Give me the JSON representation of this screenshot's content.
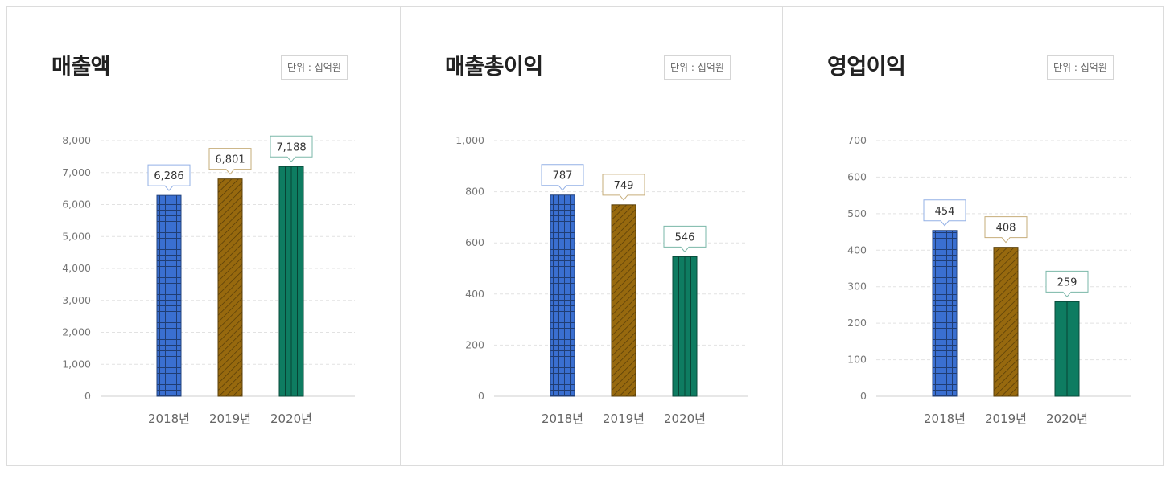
{
  "panels": [
    {
      "title": "매출액",
      "unit": "단위 : 십억원"
    },
    {
      "title": "매출총이익",
      "unit": "단위 : 십억원"
    },
    {
      "title": "영업이익",
      "unit": "단위 : 십억원"
    }
  ],
  "colors": {
    "2018년": "#3a6fd1",
    "2019년": "#97690e",
    "2020년": "#0e7c61"
  },
  "chart_data": [
    {
      "type": "bar",
      "title": "매출액",
      "unit": "단위 : 십억원",
      "categories": [
        "2018년",
        "2019년",
        "2020년"
      ],
      "values": [
        6286,
        6801,
        7188
      ],
      "value_labels": [
        "6,286",
        "6,801",
        "7,188"
      ],
      "ylim": [
        0,
        8000
      ],
      "yticks": [
        0,
        1000,
        2000,
        3000,
        4000,
        5000,
        6000,
        7000,
        8000
      ],
      "ytick_labels": [
        "0",
        "1,000",
        "2,000",
        "3,000",
        "4,000",
        "5,000",
        "6,000",
        "7,000",
        "8,000"
      ],
      "grid": true
    },
    {
      "type": "bar",
      "title": "매출총이익",
      "unit": "단위 : 십억원",
      "categories": [
        "2018년",
        "2019년",
        "2020년"
      ],
      "values": [
        787,
        749,
        546
      ],
      "value_labels": [
        "787",
        "749",
        "546"
      ],
      "ylim": [
        0,
        1000
      ],
      "yticks": [
        0,
        200,
        400,
        600,
        800,
        1000
      ],
      "ytick_labels": [
        "0",
        "200",
        "400",
        "600",
        "800",
        "1,000"
      ],
      "grid": true
    },
    {
      "type": "bar",
      "title": "영업이익",
      "unit": "단위 : 십억원",
      "categories": [
        "2018년",
        "2019년",
        "2020년"
      ],
      "values": [
        454,
        408,
        259
      ],
      "value_labels": [
        "454",
        "408",
        "259"
      ],
      "ylim": [
        0,
        700
      ],
      "yticks": [
        0,
        100,
        200,
        300,
        400,
        500,
        600,
        700
      ],
      "ytick_labels": [
        "0",
        "100",
        "200",
        "300",
        "400",
        "500",
        "600",
        "700"
      ],
      "grid": true
    }
  ]
}
